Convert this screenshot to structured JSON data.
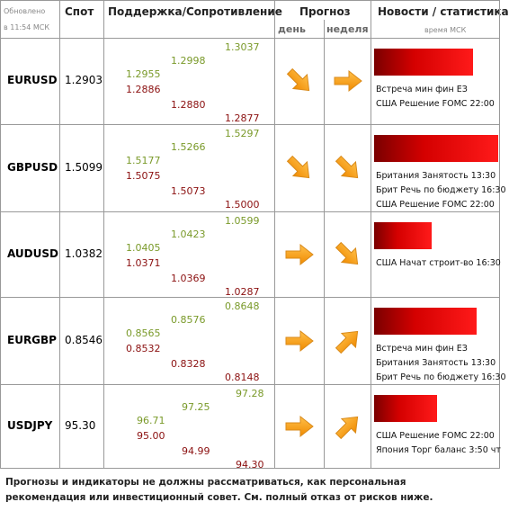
{
  "header": {
    "updated": [
      "Обновлено",
      "в 11:54 МСК"
    ],
    "spot": "Спот",
    "levels": "Поддержка/Сопротивление",
    "forecast": "Прогноз",
    "day": "день",
    "week": "неделя",
    "news": "Новости / статистика",
    "news_time": "время МСК"
  },
  "rows": [
    {
      "pair": "EURUSD",
      "spot": "1.2903",
      "levels": [
        "1.3037",
        "1.2998",
        "1.2955",
        "1.2886",
        "1.2880",
        "1.2877"
      ],
      "news": [
        "Встреча мин фин ЕЗ",
        "США Решение FOMC 22:00"
      ]
    },
    {
      "pair": "GBPUSD",
      "spot": "1.5099",
      "levels": [
        "1.5297",
        "1.5266",
        "1.5177",
        "1.5075",
        "1.5073",
        "1.5000"
      ],
      "news": [
        "Британия Занятость 13:30",
        "Брит Речь по бюджету 16:30",
        "США Решение FOMC 22:00"
      ]
    },
    {
      "pair": "AUDUSD",
      "spot": "1.0382",
      "levels": [
        "1.0599",
        "1.0423",
        "1.0405",
        "1.0371",
        "1.0369",
        "1.0287"
      ],
      "news": [
        "США Начат строит-во 16:30"
      ]
    },
    {
      "pair": "EURGBP",
      "spot": "0.8546",
      "levels": [
        "0.8648",
        "0.8576",
        "0.8565",
        "0.8532",
        "0.8328",
        "0.8148"
      ],
      "news": [
        "Встреча мин фин ЕЗ",
        "Британия Занятость 13:30",
        "Брит Речь по бюджету 16:30"
      ]
    },
    {
      "pair": "USDJPY",
      "spot": "95.30",
      "levels": [
        "97.28",
        "97.25",
        "96.71",
        "95.00",
        "94.99",
        "94.30"
      ],
      "news": [
        "США Решение FOMC 22:00",
        "Япония Торг баланс 3:50 чт"
      ]
    }
  ],
  "disclaimer": "Прогнозы и индикаторы не должны рассматриваться, как персональная рекомендация или инвестиционный совет. См. полный отказ от рисков ниже."
}
